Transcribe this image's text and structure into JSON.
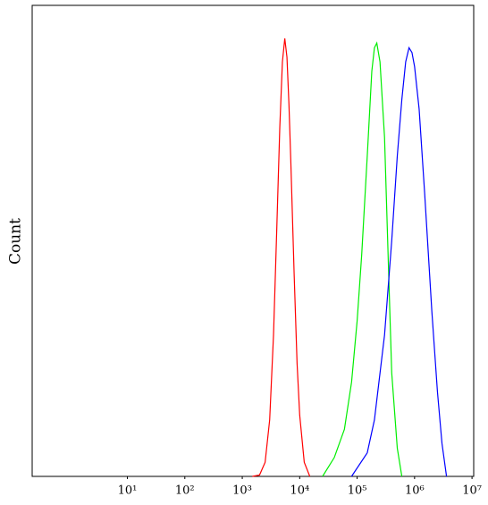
{
  "chart_data": {
    "type": "line",
    "y_label": "Count",
    "x_scale": "log",
    "xlim": [
      0.22,
      10700000
    ],
    "ylim": [
      0,
      100
    ],
    "xticks": [
      {
        "value": 10,
        "label": "10¹"
      },
      {
        "value": 100,
        "label": "10²"
      },
      {
        "value": 1000,
        "label": "10³"
      },
      {
        "value": 10000,
        "label": "10⁴"
      },
      {
        "value": 100000,
        "label": "10⁵"
      },
      {
        "value": 1000000,
        "label": "10⁶"
      },
      {
        "value": 10000000,
        "label": "10⁷"
      }
    ],
    "series": [
      {
        "color": "#ff0000",
        "x": [
          1500,
          2000,
          2500,
          3000,
          3500,
          4000,
          4500,
          5000,
          5500,
          6000,
          6500,
          7000,
          8000,
          9000,
          10000,
          12000,
          15000
        ],
        "values": [
          0,
          0.3,
          3,
          12,
          30,
          53,
          74,
          88,
          93,
          89,
          79,
          67,
          43,
          24,
          13,
          3,
          0
        ]
      },
      {
        "color": "#00ee00",
        "x": [
          25000,
          40000,
          60000,
          80000,
          100000,
          120000,
          150000,
          180000,
          200000,
          220000,
          250000,
          300000,
          350000,
          400000,
          500000,
          600000
        ],
        "values": [
          0,
          4,
          10,
          20,
          33,
          47,
          68,
          86,
          91,
          92,
          88,
          72,
          45,
          22,
          6,
          0
        ]
      },
      {
        "color": "#0000ff",
        "x": [
          80000,
          150000,
          200000,
          300000,
          400000,
          500000,
          600000,
          700000,
          800000,
          900000,
          1000000,
          1200000,
          1500000,
          2000000,
          2500000,
          3000000,
          3600000
        ],
        "values": [
          0,
          5,
          12,
          30,
          50,
          68,
          80,
          88,
          91,
          90,
          87,
          78,
          60,
          35,
          18,
          7,
          0
        ]
      }
    ]
  }
}
